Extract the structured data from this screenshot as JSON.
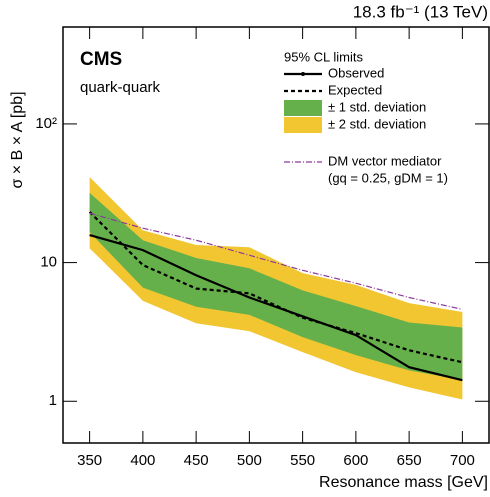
{
  "chart_data": {
    "type": "line",
    "energy_label": "18.3 fb⁻¹ (13 TeV)",
    "experiment": "CMS",
    "subtitle": "quark-quark",
    "legend_title": "95% CL limits",
    "x_label": "Resonance mass [GeV]",
    "y_label": "σ × B × A [pb]",
    "x": [
      350,
      400,
      450,
      500,
      550,
      600,
      650,
      700
    ],
    "xlim": [
      325,
      725
    ],
    "xticks": [
      350,
      400,
      450,
      500,
      550,
      600,
      650,
      700
    ],
    "ylim": [
      0.5,
      500
    ],
    "yticks": [
      1,
      10,
      {
        "value": 100,
        "label": "10²"
      }
    ],
    "log_y": true,
    "series": [
      {
        "name": "Observed",
        "color": "#000000",
        "style": "solid",
        "values": [
          15.8,
          12.3,
          8.1,
          5.6,
          4.1,
          3.0,
          1.76,
          1.42
        ]
      },
      {
        "name": "Expected",
        "color": "#000000",
        "style": "dashed",
        "values": [
          23.2,
          9.6,
          6.5,
          6.0,
          4.0,
          3.1,
          2.33,
          1.91
        ]
      },
      {
        "name": "± 1 std. deviation",
        "color": "#66b04c",
        "style": "band",
        "lower": [
          16.6,
          6.6,
          4.8,
          4.2,
          2.9,
          2.15,
          1.67,
          1.42
        ],
        "upper": [
          31.8,
          14.5,
          10.8,
          9.1,
          6.3,
          4.85,
          3.7,
          3.4
        ]
      },
      {
        "name": "± 2 std. deviation",
        "color": "#f2c631",
        "style": "band",
        "lower": [
          12.7,
          5.3,
          3.65,
          3.2,
          2.26,
          1.62,
          1.26,
          1.03
        ],
        "upper": [
          41.4,
          17.1,
          13.4,
          12.9,
          8.4,
          6.9,
          5.1,
          4.4
        ]
      },
      {
        "name": "DM vector mediator",
        "note": "(gq = 0.25, gDM = 1)",
        "color": "#8b3a9e",
        "style": "dashdot",
        "values": [
          22.7,
          17.7,
          14.5,
          11.3,
          8.8,
          7.1,
          5.6,
          4.6
        ]
      }
    ]
  }
}
